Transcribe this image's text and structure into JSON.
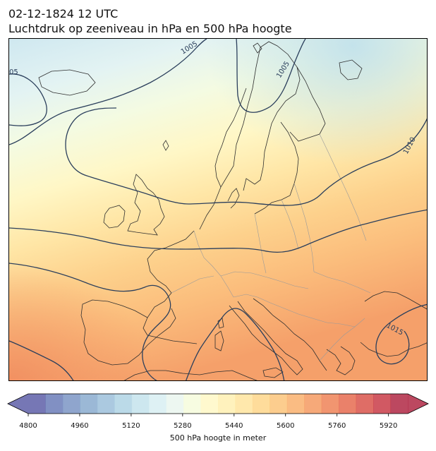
{
  "header": {
    "datetime": "02-12-1824 12 UTC",
    "subtitle": "Luchtdruk op zeeniveau in hPa en 500 hPa hoogte"
  },
  "map": {
    "region": "Europe",
    "isobar_labels": [
      "1005",
      "05",
      "1005",
      "1010",
      "1015"
    ],
    "colors": {
      "isobar": "#2b3f5c",
      "coast": "#2e2e2e",
      "border": "#9a9a9a"
    }
  },
  "colorbar": {
    "label": "500 hPa hoogte in meter",
    "min": 4800,
    "max": 5980,
    "tick_values": [
      4800,
      4960,
      5120,
      5280,
      5440,
      5600,
      5760,
      5920
    ],
    "tick_labels": [
      "4800",
      "4960",
      "5120",
      "5280",
      "5440",
      "5600",
      "5760",
      "5920"
    ],
    "extend": "both",
    "colors": [
      "#5e5fa8",
      "#6b7cb8",
      "#7b95c4",
      "#8aabcf",
      "#9cc0da",
      "#afd4e4",
      "#c4e3ec",
      "#d8eff2",
      "#eaf6ef",
      "#f6fbdc",
      "#fff8c6",
      "#fff0b2",
      "#ffe49e",
      "#fed68a",
      "#fcc47a",
      "#f9b06d",
      "#f59a62",
      "#ef8257",
      "#e66b50",
      "#d9534b",
      "#c93c48",
      "#b02844"
    ]
  }
}
